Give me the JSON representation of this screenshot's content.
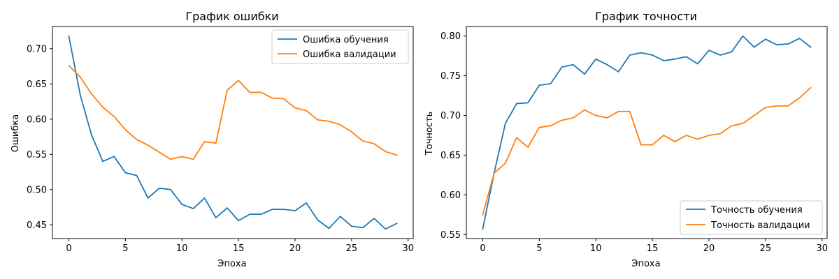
{
  "chart_data": [
    {
      "type": "line",
      "title": "График ошибки",
      "xlabel": "Эпоха",
      "ylabel": "Ошибка",
      "xlim": [
        -1.45,
        30.45
      ],
      "ylim": [
        0.4305,
        0.7315
      ],
      "xticks": [
        0,
        5,
        10,
        15,
        20,
        25,
        30
      ],
      "xtick_labels": [
        "0",
        "5",
        "10",
        "15",
        "20",
        "25",
        "30"
      ],
      "yticks": [
        0.45,
        0.5,
        0.55,
        0.6,
        0.65,
        0.7
      ],
      "ytick_labels": [
        "0.45",
        "0.50",
        "0.55",
        "0.60",
        "0.65",
        "0.70"
      ],
      "legend_position": "upper-right",
      "grid": false,
      "x": [
        0,
        1,
        2,
        3,
        4,
        5,
        6,
        7,
        8,
        9,
        10,
        11,
        12,
        13,
        14,
        15,
        16,
        17,
        18,
        19,
        20,
        21,
        22,
        23,
        24,
        25,
        26,
        27,
        28,
        29
      ],
      "series": [
        {
          "name": "Ошибка обучения",
          "color": "#1f77b4",
          "values": [
            0.718,
            0.635,
            0.578,
            0.54,
            0.547,
            0.524,
            0.52,
            0.488,
            0.502,
            0.5,
            0.479,
            0.473,
            0.488,
            0.46,
            0.474,
            0.456,
            0.465,
            0.465,
            0.472,
            0.472,
            0.47,
            0.481,
            0.457,
            0.445,
            0.462,
            0.448,
            0.446,
            0.459,
            0.444,
            0.452
          ]
        },
        {
          "name": "Ошибка валидации",
          "color": "#ff7f0e",
          "values": [
            0.676,
            0.66,
            0.636,
            0.617,
            0.604,
            0.585,
            0.571,
            0.563,
            0.553,
            0.543,
            0.547,
            0.543,
            0.568,
            0.566,
            0.641,
            0.655,
            0.638,
            0.638,
            0.63,
            0.629,
            0.616,
            0.612,
            0.599,
            0.597,
            0.592,
            0.582,
            0.569,
            0.565,
            0.554,
            0.549
          ]
        }
      ]
    },
    {
      "type": "line",
      "title": "График точности",
      "xlabel": "Эпоха",
      "ylabel": "Точность",
      "xlim": [
        -1.45,
        30.45
      ],
      "ylim": [
        0.545,
        0.812
      ],
      "xticks": [
        0,
        5,
        10,
        15,
        20,
        25,
        30
      ],
      "xtick_labels": [
        "0",
        "5",
        "10",
        "15",
        "20",
        "25",
        "30"
      ],
      "yticks": [
        0.55,
        0.6,
        0.65,
        0.7,
        0.75,
        0.8
      ],
      "ytick_labels": [
        "0.55",
        "0.60",
        "0.65",
        "0.70",
        "0.75",
        "0.80"
      ],
      "legend_position": "lower-right",
      "grid": false,
      "x": [
        0,
        1,
        2,
        3,
        4,
        5,
        6,
        7,
        8,
        9,
        10,
        11,
        12,
        13,
        14,
        15,
        16,
        17,
        18,
        19,
        20,
        21,
        22,
        23,
        24,
        25,
        26,
        27,
        28,
        29
      ],
      "series": [
        {
          "name": "Точность обучения",
          "color": "#1f77b4",
          "values": [
            0.557,
            0.627,
            0.69,
            0.715,
            0.716,
            0.738,
            0.74,
            0.761,
            0.764,
            0.752,
            0.771,
            0.764,
            0.755,
            0.776,
            0.779,
            0.776,
            0.769,
            0.771,
            0.774,
            0.765,
            0.782,
            0.776,
            0.78,
            0.8,
            0.786,
            0.796,
            0.789,
            0.79,
            0.797,
            0.786
          ]
        },
        {
          "name": "Точность валидации",
          "color": "#ff7f0e",
          "values": [
            0.575,
            0.627,
            0.64,
            0.672,
            0.66,
            0.685,
            0.687,
            0.694,
            0.697,
            0.707,
            0.7,
            0.697,
            0.705,
            0.705,
            0.663,
            0.663,
            0.675,
            0.667,
            0.675,
            0.67,
            0.675,
            0.677,
            0.687,
            0.69,
            0.7,
            0.71,
            0.712,
            0.712,
            0.722,
            0.735
          ]
        }
      ]
    }
  ]
}
